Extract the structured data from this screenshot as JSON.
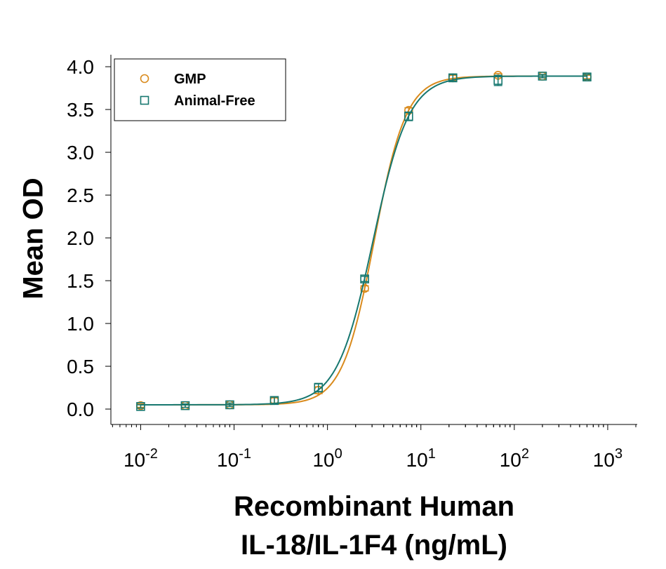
{
  "chart_data": {
    "type": "scatter",
    "ylabel": "Mean OD",
    "xlabel": [
      "Recombinant Human",
      "IL-18/IL-1F4 (ng/mL)"
    ],
    "x": [
      0.01,
      0.03,
      0.09,
      0.27,
      0.8,
      2.5,
      7.4,
      22,
      67,
      200,
      600
    ],
    "series": [
      {
        "name": "GMP",
        "color": "#d98a1c",
        "marker": "circle",
        "values": [
          0.04,
          0.04,
          0.05,
          0.1,
          0.22,
          1.41,
          3.49,
          3.87,
          3.9,
          3.89,
          3.88
        ],
        "errors": [
          0.02,
          0.02,
          0.02,
          0.03,
          0.04,
          0.03,
          0.03,
          0.03,
          0.02,
          0.02,
          0.02
        ],
        "fit": {
          "bottom": 0.05,
          "top": 3.89,
          "ec50": 3.17,
          "hill": 2.54
        }
      },
      {
        "name": "Animal-Free",
        "color": "#16776f",
        "marker": "square",
        "values": [
          0.03,
          0.04,
          0.05,
          0.1,
          0.25,
          1.52,
          3.42,
          3.87,
          3.84,
          3.89,
          3.88
        ],
        "errors": [
          0.02,
          0.02,
          0.02,
          0.04,
          0.05,
          0.03,
          0.05,
          0.04,
          0.06,
          0.02,
          0.03
        ],
        "fit": {
          "bottom": 0.05,
          "top": 3.89,
          "ec50": 3.08,
          "hill": 2.26
        }
      }
    ],
    "xscale": "log",
    "xlim": [
      0.0048,
      2070
    ],
    "ylim": [
      -0.18,
      4.14
    ],
    "xticks": [
      {
        "value": 0.01,
        "label": "10",
        "sup": "-2"
      },
      {
        "value": 0.1,
        "label": "10",
        "sup": "-1"
      },
      {
        "value": 1,
        "label": "10",
        "sup": "0"
      },
      {
        "value": 10,
        "label": "10",
        "sup": "1"
      },
      {
        "value": 100,
        "label": "10",
        "sup": "2"
      },
      {
        "value": 1000,
        "label": "10",
        "sup": "3"
      }
    ],
    "yticks": [
      {
        "value": 0,
        "label": "0.0"
      },
      {
        "value": 0.5,
        "label": "0.5"
      },
      {
        "value": 1,
        "label": "1.0"
      },
      {
        "value": 1.5,
        "label": "1.5"
      },
      {
        "value": 2,
        "label": "2.0"
      },
      {
        "value": 2.5,
        "label": "2.5"
      },
      {
        "value": 3,
        "label": "3.0"
      },
      {
        "value": 3.5,
        "label": "3.5"
      },
      {
        "value": 4,
        "label": "4.0"
      }
    ],
    "minor_ticks": true,
    "legend": "upper left"
  }
}
